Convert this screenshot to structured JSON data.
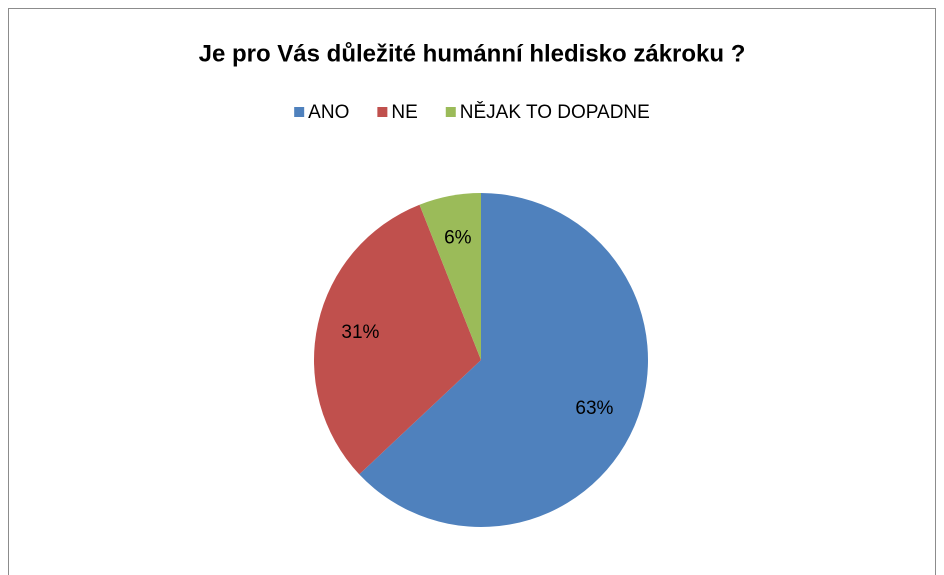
{
  "chart_data": {
    "type": "pie",
    "title": "Je pro Vás důležité humánní hledisko zákroku ?",
    "categories": [
      "ANO",
      "NE",
      "NĚJAK TO DOPADNE"
    ],
    "values": [
      63,
      31,
      6
    ],
    "value_labels": [
      "63%",
      "31%",
      "6%"
    ],
    "colors": [
      "#4f81bd",
      "#c0504d",
      "#9bbb59"
    ],
    "legend": "top"
  }
}
